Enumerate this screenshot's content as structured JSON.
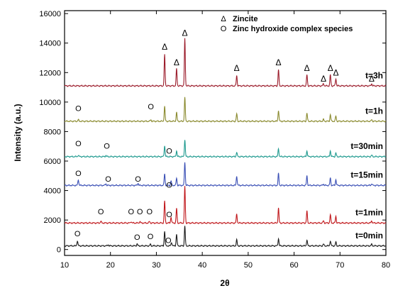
{
  "chart_data": {
    "type": "line",
    "title": "",
    "xlabel": "2θ",
    "ylabel": "Intensity (a.u.)",
    "xlim": [
      10,
      80
    ],
    "ylim": [
      -400,
      16200
    ],
    "x_ticks": [
      10,
      20,
      30,
      40,
      50,
      60,
      70,
      80
    ],
    "y_ticks": [
      0,
      2000,
      4000,
      6000,
      8000,
      10000,
      12000,
      14000,
      16000
    ],
    "grid": false,
    "legend": {
      "position": "top-right",
      "entries": [
        {
          "symbol": "Δ",
          "label": "Zincite"
        },
        {
          "symbol": "O",
          "label": "Zinc hydroxide complex species"
        }
      ]
    },
    "series": [
      {
        "name": "t=0min",
        "color": "#1a1a1a",
        "baseline": 250,
        "peaks": [
          [
            12.8,
            350
          ],
          [
            19.5,
            80
          ],
          [
            25.8,
            130
          ],
          [
            28.7,
            100
          ],
          [
            31.8,
            1000
          ],
          [
            33.3,
            250
          ],
          [
            34.4,
            800
          ],
          [
            36.2,
            1350
          ],
          [
            47.5,
            400
          ],
          [
            56.6,
            500
          ],
          [
            62.8,
            400
          ],
          [
            66.4,
            120
          ],
          [
            67.9,
            350
          ],
          [
            69.1,
            250
          ],
          [
            76.9,
            100
          ]
        ]
      },
      {
        "name": "t=1min",
        "color": "#c0171b",
        "baseline": 1800,
        "peaks": [
          [
            17.9,
            120
          ],
          [
            24.5,
            100
          ],
          [
            26.4,
            100
          ],
          [
            28.5,
            100
          ],
          [
            31.8,
            1500
          ],
          [
            33.2,
            400
          ],
          [
            34.4,
            1000
          ],
          [
            36.2,
            2500
          ],
          [
            47.5,
            600
          ],
          [
            56.6,
            1000
          ],
          [
            62.8,
            800
          ],
          [
            66.4,
            150
          ],
          [
            67.9,
            550
          ],
          [
            69.1,
            450
          ],
          [
            76.9,
            150
          ]
        ]
      },
      {
        "name": "t=15min",
        "color": "#3a4fb5",
        "baseline": 4350,
        "peaks": [
          [
            13.0,
            400
          ],
          [
            19.0,
            120
          ],
          [
            26.0,
            150
          ],
          [
            31.8,
            800
          ],
          [
            33.2,
            300
          ],
          [
            34.4,
            500
          ],
          [
            36.2,
            1600
          ],
          [
            47.5,
            650
          ],
          [
            56.6,
            800
          ],
          [
            62.8,
            650
          ],
          [
            66.4,
            100
          ],
          [
            67.9,
            500
          ],
          [
            69.1,
            400
          ],
          [
            76.9,
            120
          ]
        ]
      },
      {
        "name": "t=30min",
        "color": "#1f9a8f",
        "baseline": 6300,
        "peaks": [
          [
            13.0,
            100
          ],
          [
            19.0,
            80
          ],
          [
            31.8,
            750
          ],
          [
            34.4,
            400
          ],
          [
            36.2,
            1150
          ],
          [
            47.5,
            300
          ],
          [
            56.6,
            550
          ],
          [
            62.8,
            400
          ],
          [
            67.9,
            400
          ],
          [
            69.1,
            250
          ],
          [
            76.9,
            100
          ]
        ]
      },
      {
        "name": "t=1h",
        "color": "#8a8a2e",
        "baseline": 8700,
        "peaks": [
          [
            13.0,
            100
          ],
          [
            28.8,
            100
          ],
          [
            31.8,
            1000
          ],
          [
            34.4,
            600
          ],
          [
            36.2,
            1600
          ],
          [
            47.5,
            500
          ],
          [
            56.6,
            750
          ],
          [
            62.8,
            550
          ],
          [
            66.4,
            120
          ],
          [
            67.9,
            450
          ],
          [
            69.1,
            350
          ],
          [
            76.9,
            100
          ]
        ]
      },
      {
        "name": "t=3h",
        "color": "#9b1b2a",
        "baseline": 11100,
        "peaks": [
          [
            31.8,
            2100
          ],
          [
            34.4,
            1150
          ],
          [
            36.2,
            3200
          ],
          [
            47.5,
            700
          ],
          [
            56.6,
            1100
          ],
          [
            62.8,
            750
          ],
          [
            66.4,
            150
          ],
          [
            67.9,
            750
          ],
          [
            69.1,
            500
          ],
          [
            76.9,
            150
          ]
        ]
      }
    ],
    "annotations": [
      {
        "symbol": "Δ",
        "x": 31.8,
        "y": 13550
      },
      {
        "symbol": "Δ",
        "x": 34.4,
        "y": 12500
      },
      {
        "symbol": "Δ",
        "x": 36.2,
        "y": 14500
      },
      {
        "symbol": "Δ",
        "x": 47.5,
        "y": 12100
      },
      {
        "symbol": "Δ",
        "x": 56.6,
        "y": 12500
      },
      {
        "symbol": "Δ",
        "x": 62.8,
        "y": 12100
      },
      {
        "symbol": "Δ",
        "x": 66.4,
        "y": 11400
      },
      {
        "symbol": "Δ",
        "x": 67.9,
        "y": 12100
      },
      {
        "symbol": "Δ",
        "x": 69.1,
        "y": 11800
      },
      {
        "symbol": "Δ",
        "x": 76.9,
        "y": 11400
      },
      {
        "symbol": "O",
        "x": 13.0,
        "y": 9400
      },
      {
        "symbol": "O",
        "x": 28.8,
        "y": 9500
      },
      {
        "symbol": "O",
        "x": 13.0,
        "y": 7000
      },
      {
        "symbol": "O",
        "x": 19.2,
        "y": 6850
      },
      {
        "symbol": "O",
        "x": 32.8,
        "y": 6500
      },
      {
        "symbol": "O",
        "x": 13.0,
        "y": 5000
      },
      {
        "symbol": "O",
        "x": 19.5,
        "y": 4600
      },
      {
        "symbol": "O",
        "x": 26.0,
        "y": 4600
      },
      {
        "symbol": "O",
        "x": 32.8,
        "y": 4200
      },
      {
        "symbol": "O",
        "x": 17.9,
        "y": 2400
      },
      {
        "symbol": "O",
        "x": 24.5,
        "y": 2400
      },
      {
        "symbol": "O",
        "x": 26.4,
        "y": 2400
      },
      {
        "symbol": "O",
        "x": 28.5,
        "y": 2400
      },
      {
        "symbol": "O",
        "x": 32.8,
        "y": 2200
      },
      {
        "symbol": "O",
        "x": 12.8,
        "y": 900
      },
      {
        "symbol": "O",
        "x": 25.8,
        "y": 650
      },
      {
        "symbol": "O",
        "x": 28.7,
        "y": 700
      },
      {
        "symbol": "O",
        "x": 32.6,
        "y": 450
      }
    ]
  }
}
